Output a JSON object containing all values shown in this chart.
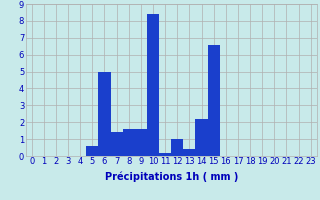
{
  "hours": [
    0,
    1,
    2,
    3,
    4,
    5,
    6,
    7,
    8,
    9,
    10,
    11,
    12,
    13,
    14,
    15,
    16,
    17,
    18,
    19,
    20,
    21,
    22,
    23
  ],
  "values": [
    0,
    0,
    0,
    0,
    0,
    0.6,
    5.0,
    1.4,
    1.6,
    1.6,
    8.4,
    0.2,
    1.0,
    0.4,
    2.2,
    6.6,
    0,
    0,
    0,
    0,
    0,
    0,
    0,
    0
  ],
  "bar_color": "#1a3fcc",
  "background_color": "#c8eaea",
  "grid_color": "#b0b0b0",
  "text_color": "#0000bb",
  "xlabel": "Précipitations 1h ( mm )",
  "ylim": [
    0,
    9
  ],
  "yticks": [
    0,
    1,
    2,
    3,
    4,
    5,
    6,
    7,
    8,
    9
  ],
  "xticks": [
    0,
    1,
    2,
    3,
    4,
    5,
    6,
    7,
    8,
    9,
    10,
    11,
    12,
    13,
    14,
    15,
    16,
    17,
    18,
    19,
    20,
    21,
    22,
    23
  ],
  "label_fontsize": 7,
  "tick_fontsize": 6
}
